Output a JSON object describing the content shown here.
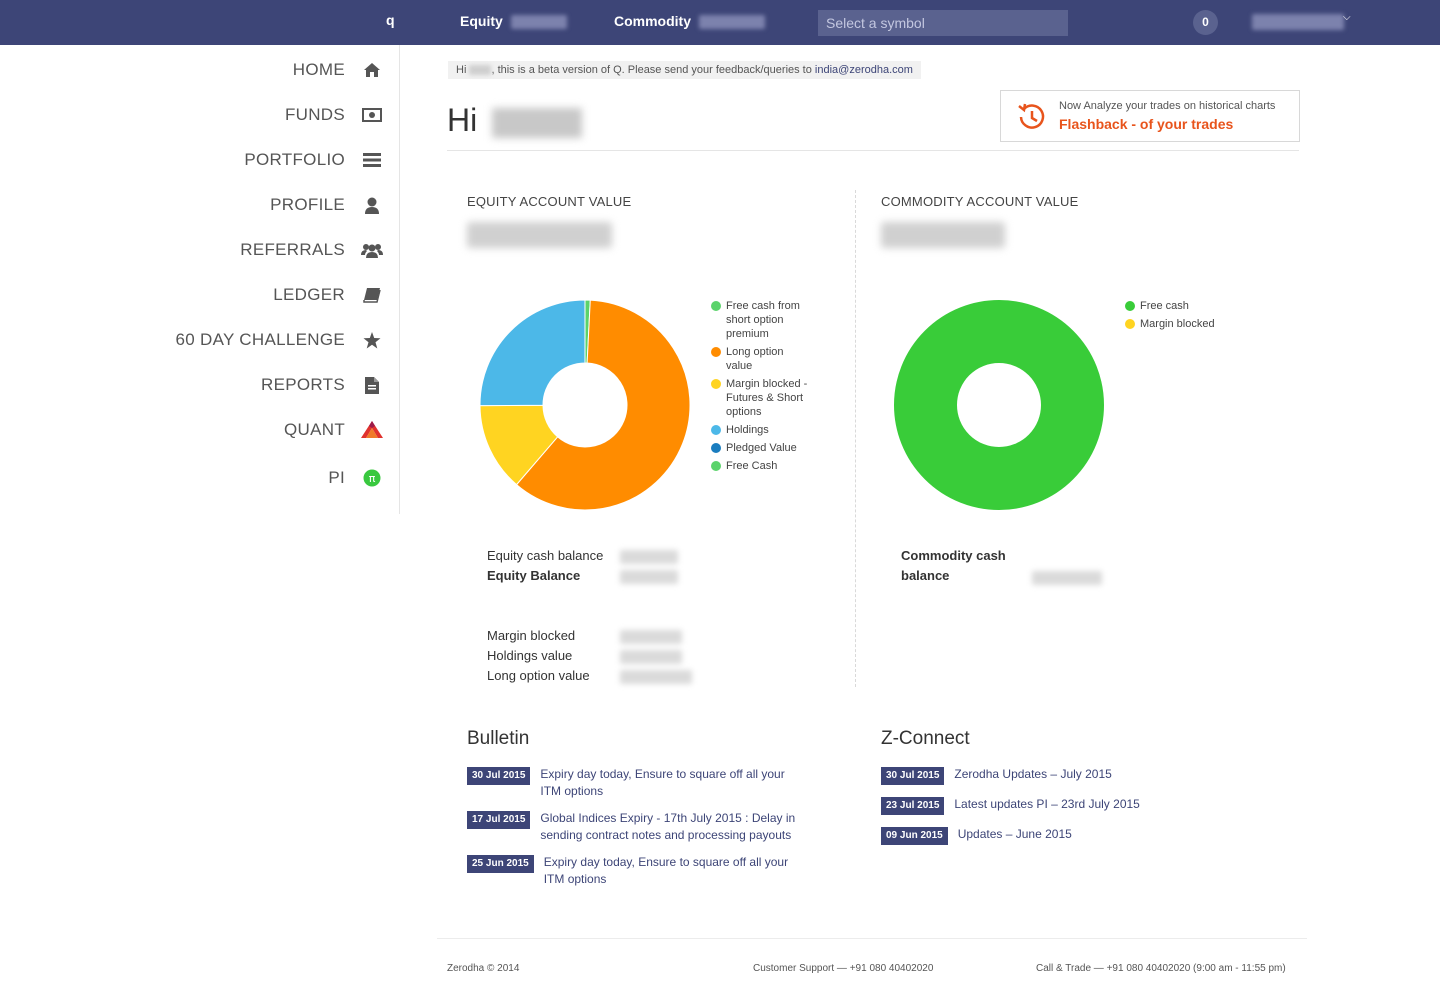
{
  "topbar": {
    "logo": "q",
    "equity_label": "Equity",
    "commodity_label": "Commodity",
    "search_placeholder": "Select a symbol",
    "notification_count": "0"
  },
  "sidebar": {
    "items": [
      {
        "label": "HOME",
        "icon": "home-icon"
      },
      {
        "label": "FUNDS",
        "icon": "money-icon"
      },
      {
        "label": "PORTFOLIO",
        "icon": "list-icon"
      },
      {
        "label": "PROFILE",
        "icon": "user-icon"
      },
      {
        "label": "REFERRALS",
        "icon": "users-icon"
      },
      {
        "label": "LEDGER",
        "icon": "book-icon"
      },
      {
        "label": "60 DAY CHALLENGE",
        "icon": "star-icon"
      },
      {
        "label": "REPORTS",
        "icon": "file-icon"
      },
      {
        "label": "QUANT",
        "icon": "quant-logo-icon"
      },
      {
        "label": "PI",
        "icon": "pi-icon"
      }
    ]
  },
  "beta": {
    "prefix": "Hi",
    "message": ", this is a beta version of Q. Please send your feedback/queries to",
    "email": "india@zerodha.com"
  },
  "greeting": "Hi",
  "flashback": {
    "subtitle": "Now Analyze your trades on historical charts",
    "title": "Flashback - of your trades",
    "color": "#e8541c"
  },
  "equity": {
    "title": "EQUITY ACCOUNT VALUE",
    "legend": [
      {
        "label": "Free cash from short option premium",
        "color": "#5bd36b"
      },
      {
        "label": "Long option value",
        "color": "#ff8c00"
      },
      {
        "label": "Margin blocked - Futures & Short options",
        "color": "#ffd421"
      },
      {
        "label": "Holdings",
        "color": "#4cb8e8"
      },
      {
        "label": "Pledged Value",
        "color": "#1a7dbf"
      },
      {
        "label": "Free Cash",
        "color": "#5bd36b"
      }
    ],
    "cash_balance_label": "Equity cash balance",
    "balance_label": "Equity Balance",
    "margin_label": "Margin blocked",
    "holdings_label": "Holdings value",
    "long_option_label": "Long option value"
  },
  "commodity": {
    "title": "COMMODITY ACCOUNT VALUE",
    "legend": [
      {
        "label": "Free cash",
        "color": "#39cc39"
      },
      {
        "label": "Margin blocked",
        "color": "#ffd421"
      }
    ],
    "cash_balance_label_1": "Commodity cash",
    "cash_balance_label_2": "balance"
  },
  "chart_data": [
    {
      "type": "pie",
      "title": "EQUITY ACCOUNT VALUE",
      "series": [
        {
          "name": "Free cash from short option premium",
          "value": 0.8,
          "color": "#5bd36b"
        },
        {
          "name": "Long option value",
          "value": 60.5,
          "color": "#ff8c00"
        },
        {
          "name": "Margin blocked - Futures & Short options",
          "value": 13.6,
          "color": "#ffd421"
        },
        {
          "name": "Holdings",
          "value": 25.1,
          "color": "#4cb8e8"
        },
        {
          "name": "Pledged Value",
          "value": 0,
          "color": "#1a7dbf"
        },
        {
          "name": "Free Cash",
          "value": 0,
          "color": "#5bd36b"
        }
      ]
    },
    {
      "type": "pie",
      "title": "COMMODITY ACCOUNT VALUE",
      "series": [
        {
          "name": "Free cash",
          "value": 100,
          "color": "#39cc39"
        },
        {
          "name": "Margin blocked",
          "value": 0,
          "color": "#ffd421"
        }
      ]
    }
  ],
  "bulletin": {
    "title": "Bulletin",
    "items": [
      {
        "date": "30 Jul 2015",
        "text": "Expiry day today, Ensure to square off all your ITM options"
      },
      {
        "date": "17 Jul 2015",
        "text": "Global Indices Expiry - 17th July 2015 : Delay in sending contract notes and processing payouts"
      },
      {
        "date": "25 Jun 2015",
        "text": "Expiry day today, Ensure to square off all your ITM options"
      }
    ]
  },
  "zconnect": {
    "title": "Z-Connect",
    "items": [
      {
        "date": "30 Jul 2015",
        "text": "Zerodha Updates – July 2015"
      },
      {
        "date": "23 Jul 2015",
        "text": "Latest updates PI – 23rd July 2015"
      },
      {
        "date": "09 Jun 2015",
        "text": "Updates – June 2015"
      }
    ]
  },
  "footer": {
    "copyright": "Zerodha © 2014",
    "support": "Customer Support — +91 080 40402020",
    "call_trade": "Call & Trade — +91 080 40402020 (9:00 am - 11:55 pm)"
  }
}
